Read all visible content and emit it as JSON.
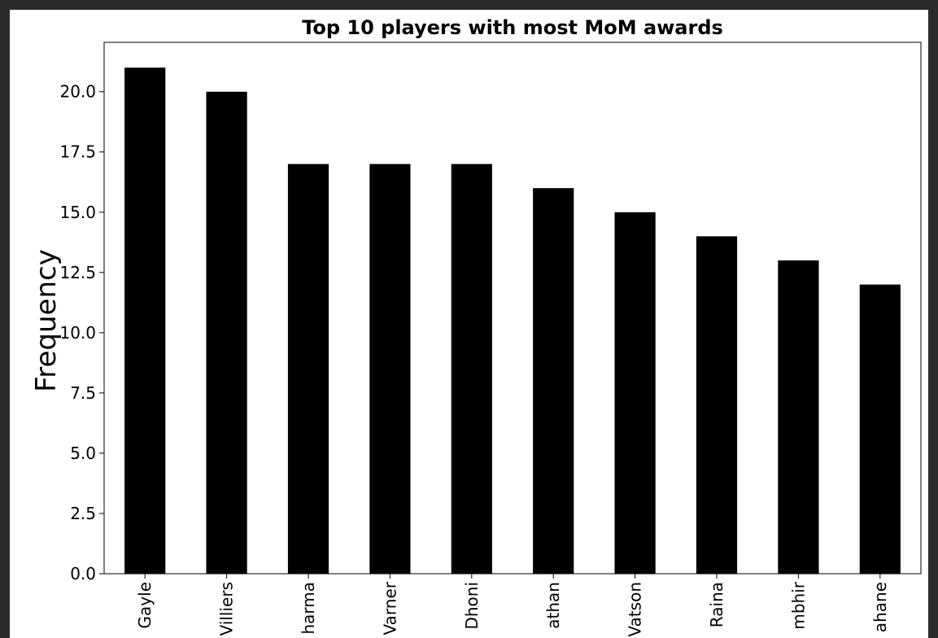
{
  "chart_data": {
    "type": "bar",
    "title": "Top 10 players with most MoM awards",
    "xlabel": "",
    "ylabel": "Frequency",
    "categories": [
      "Gayle",
      "Villiers",
      "harma",
      "Varner",
      "Dhoni",
      "athan",
      "Vatson",
      "Raina",
      "mbhir",
      "ahane"
    ],
    "values": [
      21,
      20,
      17,
      17,
      17,
      16,
      15,
      14,
      13,
      12
    ],
    "ylim": [
      0,
      22.05
    ],
    "yticks": [
      "0.0",
      "2.5",
      "5.0",
      "7.5",
      "10.0",
      "12.5",
      "15.0",
      "17.5",
      "20.0"
    ],
    "bar_color": "#000000",
    "grid": false,
    "legend": "none"
  }
}
